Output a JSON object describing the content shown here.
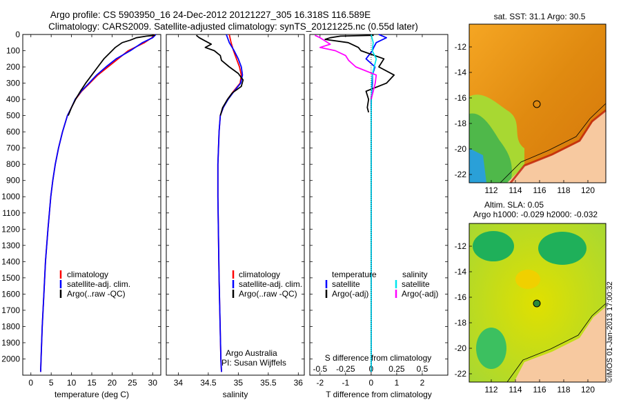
{
  "header": {
    "title_line1": "Argo profile: CS 5903950_16 24-Dec-2012 20121227_305 16.318S 116.589E",
    "title_line2": "Climatology: CARS2009. Satellite-adjusted climatology: synTS_20121225.nc (0.55d later)"
  },
  "colors": {
    "climatology": "#ff0000",
    "satellite": "#0000ff",
    "argo": "#000000",
    "sat_salinity": "#00e5ee",
    "argo_salinity_diff": "#ff00ff"
  },
  "chart_data": [
    {
      "type": "line",
      "id": "temperature",
      "xlabel": "temperature (deg C)",
      "ylabel": "",
      "xlim": [
        -2,
        32
      ],
      "ylim": [
        2100,
        0
      ],
      "xticks": [
        0,
        5,
        10,
        15,
        20,
        25,
        30
      ],
      "yticks": [
        0,
        100,
        200,
        300,
        400,
        500,
        600,
        700,
        800,
        900,
        1000,
        1100,
        1200,
        1300,
        1400,
        1500,
        1600,
        1700,
        1800,
        1900,
        2000
      ],
      "legend": [
        "climatology",
        "satellite-adj. clim.",
        "Argo(..raw -QC)"
      ],
      "series": [
        {
          "name": "climatology",
          "color": "#ff0000",
          "depth": [
            0,
            20,
            50,
            100,
            150,
            200,
            250,
            300,
            350,
            400,
            450,
            500,
            600,
            700,
            800,
            900,
            1000,
            1200,
            1400,
            1600,
            1800,
            2000,
            2080
          ],
          "values": [
            30.5,
            29.8,
            28,
            24,
            21.5,
            19,
            16.5,
            14.5,
            12.5,
            11,
            10,
            9,
            7.8,
            6.8,
            6,
            5.4,
            4.9,
            4.2,
            3.6,
            3.2,
            2.8,
            2.5,
            2.4
          ]
        },
        {
          "name": "satellite-adj. clim.",
          "color": "#0000ff",
          "depth": [
            0,
            20,
            50,
            100,
            150,
            200,
            250,
            300,
            350,
            400,
            450,
            500,
            600,
            700,
            800,
            900,
            1000,
            1200,
            1400,
            1600,
            1800,
            2000,
            2080
          ],
          "values": [
            30.8,
            30,
            27.5,
            24.5,
            21,
            18.5,
            16.2,
            14.3,
            12.4,
            10.9,
            10,
            9,
            7.8,
            6.8,
            6,
            5.4,
            4.9,
            4.2,
            3.6,
            3.2,
            2.8,
            2.5,
            2.4
          ]
        },
        {
          "name": "Argo(..raw -QC)",
          "color": "#000000",
          "depth": [
            5,
            10,
            20,
            35,
            50,
            80,
            100,
            150,
            200,
            250,
            300,
            350,
            400,
            450,
            500
          ],
          "values": [
            30.6,
            28.5,
            26,
            24.5,
            22.5,
            20.8,
            20,
            18,
            16.5,
            15,
            13.5,
            12.2,
            11,
            10,
            9.2
          ]
        }
      ]
    },
    {
      "type": "line",
      "id": "salinity",
      "xlabel": "salinity",
      "ylabel": "",
      "xlim": [
        33.8,
        36.1
      ],
      "ylim": [
        2100,
        0
      ],
      "xticks": [
        34,
        34.5,
        35,
        35.5,
        36
      ],
      "legend": [
        "climatology",
        "satellite-adj. clim.",
        "Argo(..raw -QC)"
      ],
      "annotation": [
        "Argo Australia",
        "PI: Susan Wijffels"
      ],
      "series": [
        {
          "name": "climatology",
          "color": "#ff0000",
          "depth": [
            0,
            50,
            100,
            150,
            200,
            250,
            300,
            350,
            400,
            450,
            500,
            600,
            800,
            1000,
            1500,
            2000,
            2080
          ],
          "values": [
            34.85,
            34.88,
            34.92,
            34.97,
            35.02,
            35.05,
            35.03,
            34.92,
            34.82,
            34.75,
            34.7,
            34.68,
            34.66,
            34.66,
            34.68,
            34.71,
            34.72
          ]
        },
        {
          "name": "satellite-adj. clim.",
          "color": "#0000ff",
          "depth": [
            0,
            50,
            100,
            150,
            200,
            250,
            300,
            350,
            400,
            450,
            500,
            600,
            800,
            1000,
            1500,
            2000,
            2080
          ],
          "values": [
            34.8,
            34.85,
            34.93,
            35,
            35.05,
            35.07,
            35.04,
            34.93,
            34.83,
            34.75,
            34.7,
            34.68,
            34.66,
            34.66,
            34.68,
            34.71,
            34.72
          ]
        },
        {
          "name": "Argo(..raw -QC)",
          "color": "#000000",
          "depth": [
            5,
            20,
            40,
            60,
            80,
            100,
            130,
            160,
            200,
            240,
            280,
            320,
            360,
            400,
            450,
            500
          ],
          "values": [
            34.3,
            34.35,
            34.45,
            34.55,
            34.45,
            34.6,
            34.7,
            34.72,
            34.85,
            35,
            35.08,
            35.05,
            34.9,
            34.82,
            34.74,
            34.7
          ]
        }
      ]
    },
    {
      "type": "line",
      "id": "differences",
      "xlabel": "T difference from climatology",
      "xlabel_top": "S difference from climatology",
      "xlim": [
        -2.4,
        3
      ],
      "ylim": [
        2100,
        0
      ],
      "xticks": [
        -2,
        -1,
        0,
        1,
        2
      ],
      "sticks_values": [
        -0.5,
        -0.25,
        0,
        0.25,
        0.5
      ],
      "sticks_labels": [
        "-0.5",
        "-0.25",
        "0",
        "0.25",
        "0.5"
      ],
      "legend_temperature_title": "temperature",
      "legend_salinity_title": "salinity",
      "legend": [
        "satellite",
        "Argo(-adj)",
        "satellite",
        "Argo(-adj)"
      ],
      "series": [
        {
          "name": "T satellite",
          "color": "#0000ff",
          "depth": [
            0,
            20,
            50,
            80,
            100,
            150,
            200,
            250,
            300,
            400,
            500,
            1000,
            2080
          ],
          "values": [
            0.3,
            0.6,
            0.2,
            0.1,
            0.05,
            -0.2,
            0.15,
            0.05,
            0.05,
            0,
            0,
            0,
            0
          ]
        },
        {
          "name": "T Argo(-adj)",
          "color": "#000000",
          "depth": [
            5,
            10,
            20,
            30,
            50,
            80,
            100,
            150,
            200,
            250,
            300,
            350,
            400,
            450,
            480
          ],
          "values": [
            0.1,
            -1.2,
            -1.6,
            -1.8,
            -0.9,
            -0.5,
            -0.4,
            0.5,
            0.3,
            0.9,
            0.6,
            -0.2,
            -0.1,
            -0.15,
            -0.1
          ]
        },
        {
          "name": "S satellite",
          "color": "#00e5ee",
          "depth": [
            0,
            50,
            100,
            150,
            200,
            250,
            300,
            500,
            1000,
            2080
          ],
          "values": [
            0.0,
            0.02,
            0.01,
            0.05,
            0.03,
            0.01,
            0.005,
            0,
            0,
            0
          ]
        },
        {
          "name": "S Argo(-adj)",
          "color": "#ff00ff",
          "depth": [
            5,
            20,
            40,
            60,
            80,
            100,
            130,
            160,
            200,
            250,
            300,
            350,
            400
          ],
          "values": [
            -0.55,
            -0.5,
            -0.45,
            -0.4,
            -0.5,
            -0.35,
            -0.25,
            -0.22,
            -0.15,
            0.05,
            0.04,
            0.02,
            0.0
          ]
        }
      ]
    }
  ],
  "maps": {
    "sst": {
      "title": "sat. SST: 31.1  Argo: 30.5",
      "xticks": [
        "112",
        "114",
        "116",
        "118",
        "120"
      ],
      "yticks": [
        "-12",
        "-14",
        "-16",
        "-18",
        "-20",
        "-22"
      ]
    },
    "sla": {
      "title1": "Altim. SLA: 0.05",
      "title2": "Argo h1000: -0.029 h2000: -0.032",
      "xticks": [
        "112",
        "114",
        "116",
        "118",
        "120"
      ],
      "yticks": [
        "-12",
        "-14",
        "-16",
        "-18",
        "-20",
        "-22"
      ]
    }
  },
  "footer": {
    "stamp": "©IMOS 01-Jan-2013 17:00:32"
  }
}
